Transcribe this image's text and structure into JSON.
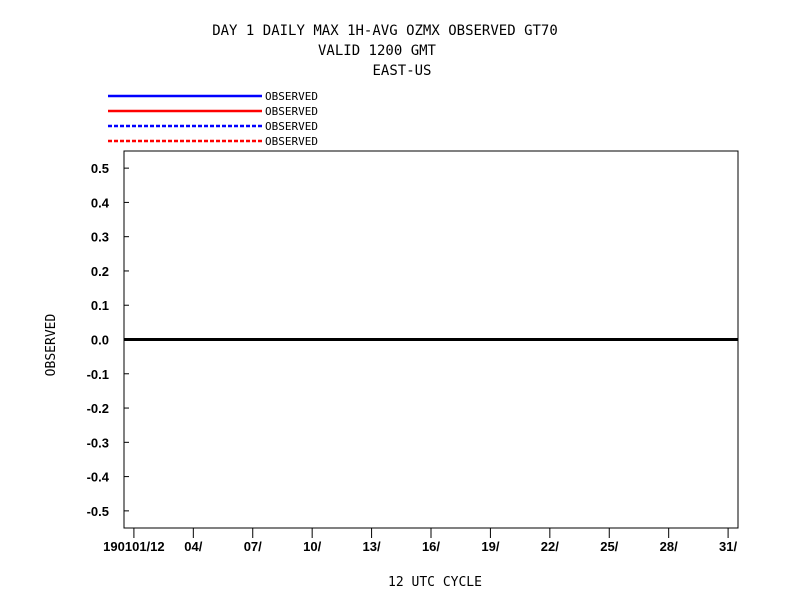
{
  "chart_data": {
    "type": "line",
    "title": [
      "DAY 1 DAILY MAX   1H-AVG OZMX OBSERVED GT70",
      "VALID 1200 GMT",
      "EAST-US"
    ],
    "xlabel": "12 UTC CYCLE",
    "ylabel": "OBSERVED",
    "ylim": [
      -0.55,
      0.55
    ],
    "y_ticks": [
      0.5,
      0.4,
      0.3,
      0.2,
      0.1,
      0.0,
      -0.1,
      -0.2,
      -0.3,
      -0.4,
      -0.5
    ],
    "y_tick_labels": [
      "0.5",
      "0.4",
      "0.3",
      "0.2",
      "0.1",
      "0.0",
      "-0.1",
      "-0.2",
      "-0.3",
      "-0.4",
      "-0.5"
    ],
    "x_tick_labels": [
      "190101/12",
      "04/",
      "07/",
      "10/",
      "13/",
      "16/",
      "19/",
      "22/",
      "25/",
      "28/",
      "31/"
    ],
    "x_tick_days": [
      1,
      4,
      7,
      10,
      13,
      16,
      19,
      22,
      25,
      28,
      31
    ],
    "x_range_days": [
      0.5,
      31.5
    ],
    "zero_line": 0.0,
    "grid": false,
    "legend_placement": "top-left",
    "series": [
      {
        "name": "OBSERVED",
        "color": "#0000ff",
        "style": "solid",
        "values": []
      },
      {
        "name": "OBSERVED",
        "color": "#ff0000",
        "style": "solid",
        "values": []
      },
      {
        "name": "OBSERVED",
        "color": "#0000ff",
        "style": "dashed",
        "values": []
      },
      {
        "name": "OBSERVED",
        "color": "#ff0000",
        "style": "dashed",
        "values": []
      }
    ]
  }
}
